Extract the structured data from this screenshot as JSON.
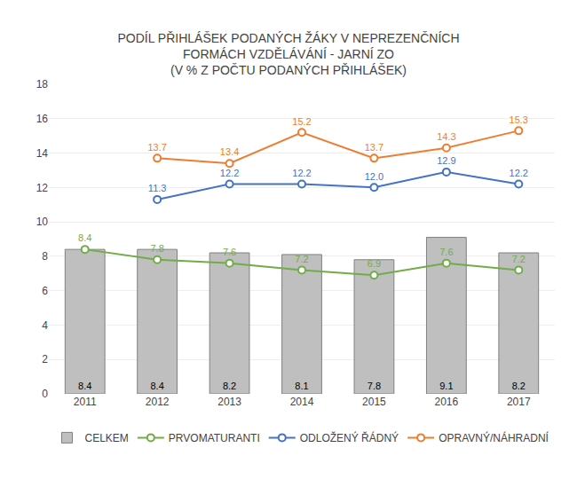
{
  "chart_data": {
    "type": "bar",
    "title": "PODÍL PŘIHLÁŠEK PODANÝCH ŽÁKY V NEPREZENČNÍCH\nFORMÁCH VZDĚLÁVÁNÍ - JARNÍ ZO\n(V % Z POČTU PODANÝCH PŘIHLÁŠEK)",
    "categories": [
      "2011",
      "2012",
      "2013",
      "2014",
      "2015",
      "2016",
      "2017"
    ],
    "series": [
      {
        "name": "CELKEM",
        "type": "bar",
        "color": "#bfbfbf",
        "values": [
          8.4,
          8.4,
          8.2,
          8.1,
          7.8,
          9.1,
          8.2
        ]
      },
      {
        "name": "PRVOMATURANTI",
        "type": "line",
        "color": "#70ad47",
        "marker": "circle",
        "line_style": "solid",
        "values": [
          8.4,
          7.8,
          7.6,
          7.2,
          6.9,
          7.6,
          7.2
        ]
      },
      {
        "name": "ODLOŽENÝ ŘÁDNÝ",
        "type": "line",
        "color": "#4472c4",
        "marker": "circle",
        "line_style": "solid",
        "values": [
          null,
          11.3,
          12.2,
          12.2,
          12.0,
          12.9,
          12.2
        ],
        "value_labels": [
          null,
          "11.3",
          "12.2",
          "12.2",
          "12.0",
          "12.9",
          "12.2"
        ]
      },
      {
        "name": "OPRAVNÝ/NÁHRADNÍ",
        "type": "line",
        "color": "#ed7d31",
        "marker": "circle",
        "line_style": "solid",
        "values": [
          null,
          13.7,
          13.4,
          15.2,
          13.7,
          14.3,
          15.3
        ]
      }
    ],
    "ylim": [
      0,
      18
    ],
    "yticks": [
      0,
      2,
      4,
      6,
      8,
      10,
      12,
      14,
      16,
      18
    ],
    "grid": true,
    "legend": "bottom",
    "data_labels": true
  }
}
